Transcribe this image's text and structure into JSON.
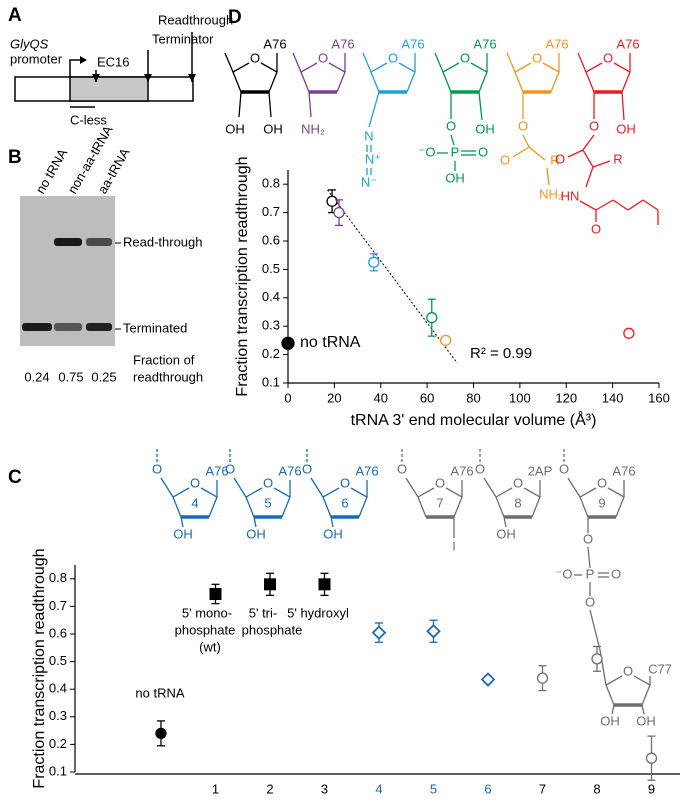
{
  "panel_labels": [
    "A",
    "B",
    "C",
    "D"
  ],
  "panel_a": {
    "promoter": [
      "GlyQS",
      "promoter"
    ],
    "pause": "EC16",
    "terminator": [
      "Readthrough",
      "Terminator"
    ],
    "cless": "C-less"
  },
  "panel_b": {
    "lanes": [
      "no tRNA",
      "non-aa-tRNA",
      "aa-tRNA"
    ],
    "bands": [
      "Read-through",
      "Terminated"
    ],
    "fractions": [
      0.24,
      0.75,
      0.25
    ],
    "fraction_label": [
      "Fraction of",
      "readthrough"
    ]
  },
  "structures_d": [
    {
      "color": "#000000",
      "labels": [
        "O",
        "A76",
        "OH",
        "OH"
      ]
    },
    {
      "color": "#7b3f98",
      "labels": [
        "O",
        "A76",
        "NH₂"
      ]
    },
    {
      "color": "#1ba1d7",
      "labels": [
        "O",
        "A76",
        "N",
        "N⁺",
        "N⁻"
      ]
    },
    {
      "color": "#00994c",
      "labels": [
        "O",
        "A76",
        "O",
        "⁻O",
        "P",
        "O",
        "OH",
        "OH"
      ]
    },
    {
      "color": "#f7941d",
      "labels": [
        "O",
        "A76",
        "O",
        "O",
        "R",
        "NH₂"
      ]
    },
    {
      "color": "#ed1c24",
      "labels": [
        "O",
        "A76",
        "O",
        "OH",
        "O",
        "R",
        "HN",
        "O"
      ]
    }
  ],
  "structures_c": [
    {
      "color": "#1a6bb0",
      "labels": [
        "O",
        "O",
        "4",
        "A76",
        "OH"
      ]
    },
    {
      "color": "#1a6bb0",
      "labels": [
        "O",
        "O",
        "5",
        "A76",
        "OH"
      ]
    },
    {
      "color": "#1a6bb0",
      "labels": [
        "O",
        "O",
        "6",
        "A76",
        "OH"
      ]
    },
    {
      "color": "#6d6e71",
      "labels": [
        "O",
        "O",
        "7",
        "A76",
        "I"
      ]
    },
    {
      "color": "#6d6e71",
      "labels": [
        "O",
        "O",
        "8",
        "2AP",
        "OH"
      ]
    },
    {
      "color": "#6d6e71",
      "labels": [
        "O",
        "O",
        "9",
        "A76",
        "O",
        "⁻O",
        "P",
        "O",
        "O",
        "O",
        "C77",
        "OH",
        "OH"
      ]
    }
  ],
  "chart_data": [
    {
      "type": "scatter",
      "xlabel": "tRNA 3' end molecular volume (Å³)",
      "ylabel": "Fraction transcription readthrough",
      "xlim": [
        0,
        160
      ],
      "xticks": [
        0,
        20,
        40,
        60,
        80,
        100,
        120,
        140,
        160
      ],
      "ylim": [
        0.1,
        0.85
      ],
      "yticks": [
        0.1,
        0.2,
        0.3,
        0.4,
        0.5,
        0.6,
        0.7,
        0.8
      ],
      "x": [
        0,
        19,
        22,
        37,
        62,
        68,
        147
      ],
      "values": [
        0.24,
        0.74,
        0.7,
        0.525,
        0.33,
        0.25,
        0.275
      ],
      "errors": [
        null,
        0.04,
        0.045,
        0.03,
        0.065,
        0.01,
        0.01
      ],
      "colors": [
        "#000000",
        "#000000",
        "#7b3f98",
        "#1ba1d7",
        "#00994c",
        "#f7941d",
        "#ed1c24"
      ],
      "markers": [
        "filled",
        "open",
        "open",
        "open",
        "open",
        "open",
        "open"
      ],
      "fit": {
        "x": [
          17,
          73
        ],
        "values": [
          0.78,
          0.17
        ]
      },
      "annotations": [
        "no tRNA",
        "R² = 0.99"
      ]
    },
    {
      "type": "dot",
      "ylabel": "Fraction transcription readthrough",
      "ylim": [
        0.1,
        0.85
      ],
      "yticks": [
        0.1,
        0.2,
        0.3,
        0.4,
        0.5,
        0.6,
        0.7,
        0.8
      ],
      "categories": [
        null,
        "1",
        "2",
        "3",
        "4",
        "5",
        "6",
        "7",
        "8",
        "9"
      ],
      "category_colors": [
        "#000000",
        "#000000",
        "#000000",
        "#000000",
        "#1a6bb0",
        "#1a6bb0",
        "#1a6bb0",
        "#000000",
        "#000000",
        "#000000"
      ],
      "values": [
        0.24,
        0.745,
        0.78,
        0.78,
        0.605,
        0.61,
        0.435,
        0.44,
        0.51,
        0.15
      ],
      "errors": [
        0.045,
        0.035,
        0.04,
        0.04,
        0.035,
        0.04,
        0.01,
        0.045,
        0.045,
        0.08
      ],
      "markers": [
        "filled-circle",
        "square",
        "square",
        "square",
        "diamond",
        "diamond",
        "diamond",
        "open-circle",
        "open-circle",
        "open-circle"
      ],
      "colors": [
        "#000000",
        "#000000",
        "#000000",
        "#000000",
        "#1a6bb0",
        "#1a6bb0",
        "#1a6bb0",
        "#6d6e71",
        "#6d6e71",
        "#6d6e71"
      ],
      "annotations": [
        "no tRNA",
        "5' mono-",
        "phosphate",
        "(wt)",
        "5' tri-",
        "phosphate",
        "5' hydroxyl"
      ]
    }
  ]
}
